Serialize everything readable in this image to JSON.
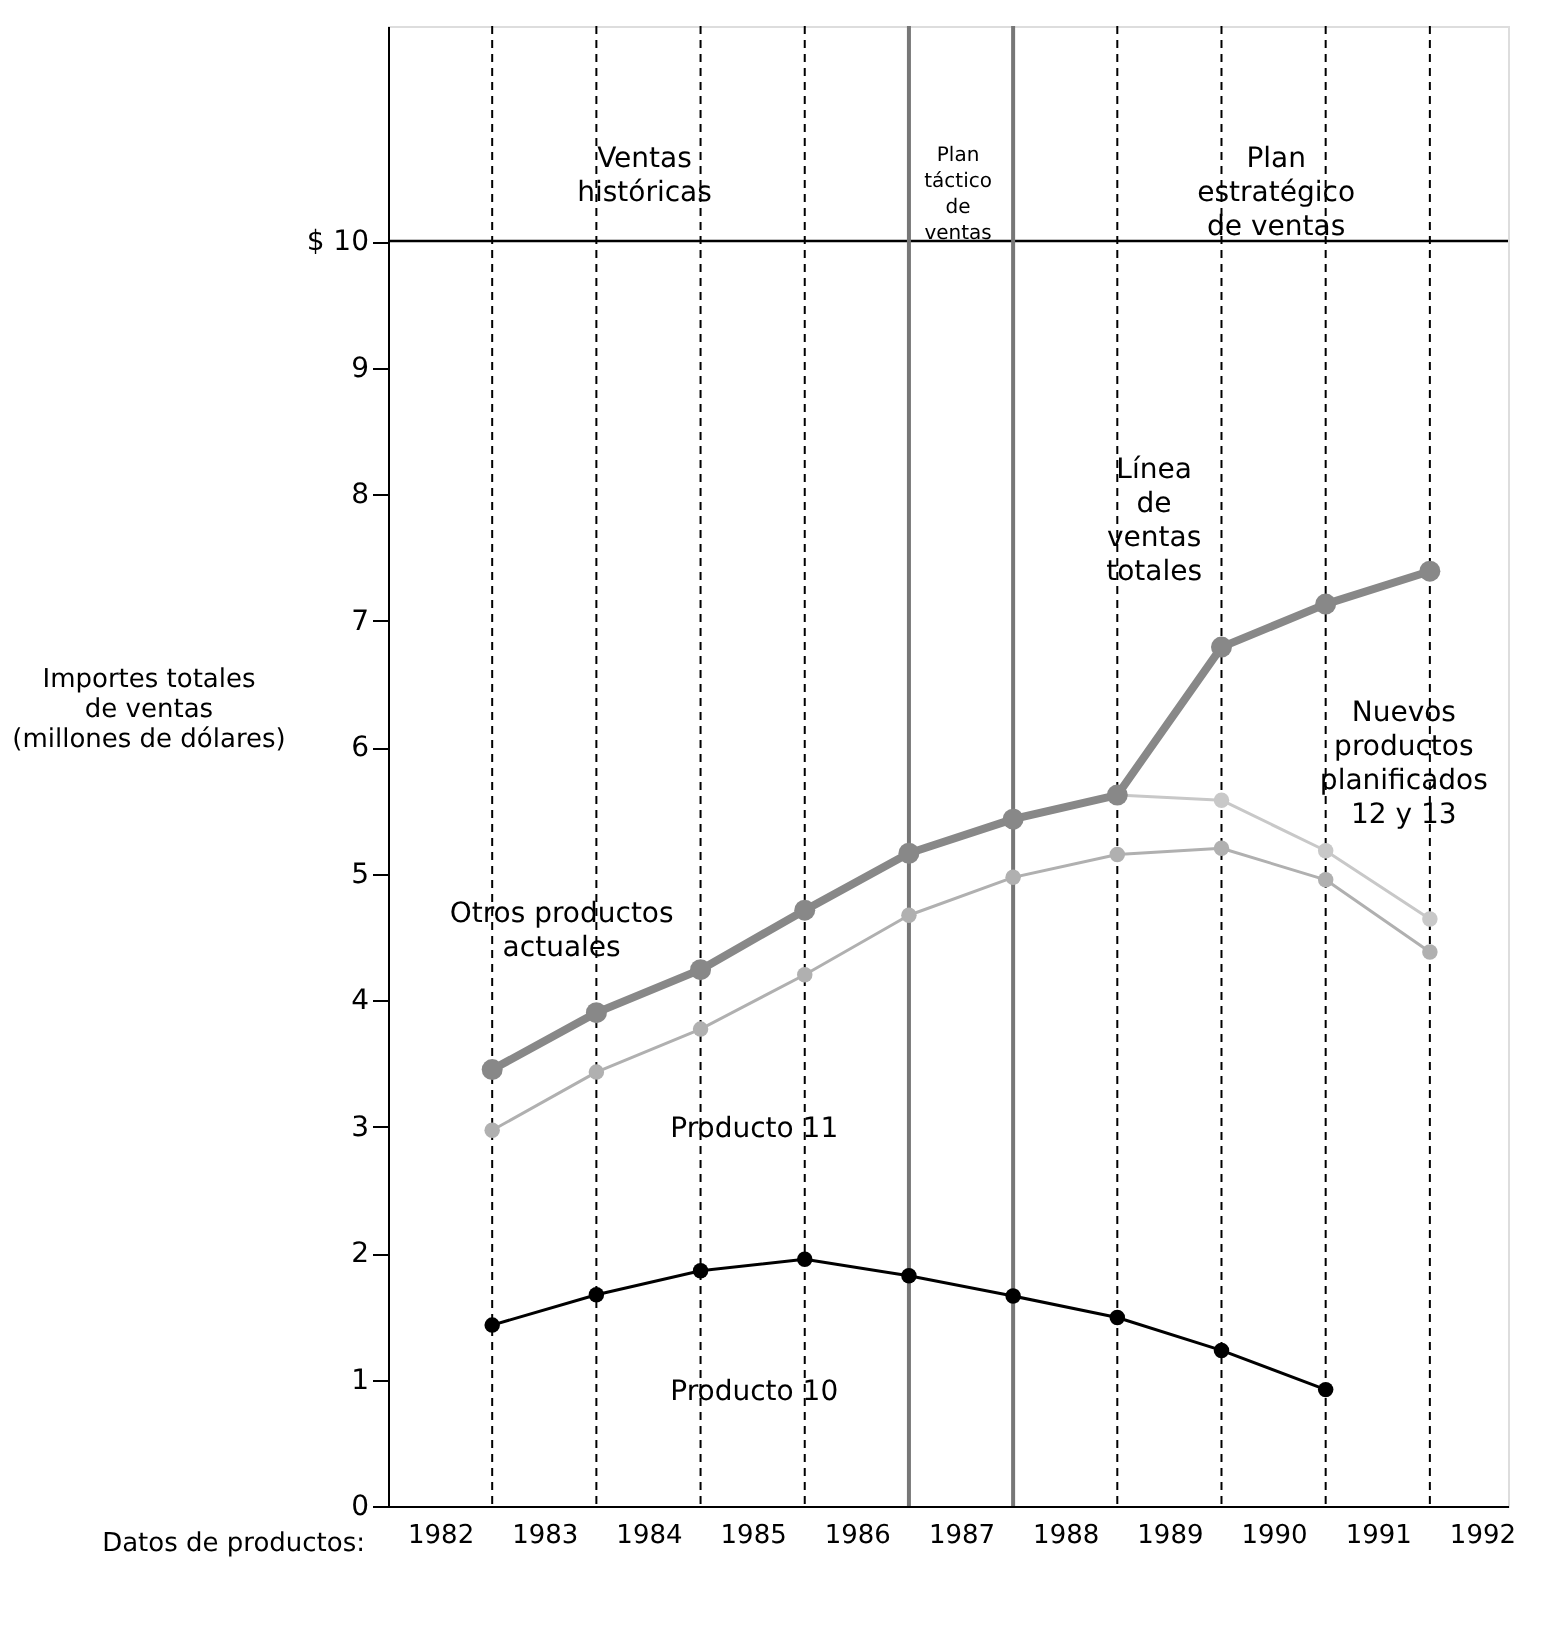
{
  "chart_data": {
    "type": "line",
    "xlabel": "Datos de productos:",
    "ylabel": "Importes totales\nde ventas\n(millones de dólares)",
    "x": [
      1983,
      1984,
      1985,
      1986,
      1987,
      1988,
      1989,
      1990,
      1991,
      1992
    ],
    "series": [
      {
        "color": "#c8c8c8",
        "x": [
          1989,
          1990,
          1991,
          1992
        ],
        "values": [
          5.62,
          5.58,
          5.18,
          4.64
        ]
      },
      {
        "color": "#b0b0b0",
        "values": [
          2.97,
          3.43,
          3.77,
          4.2,
          4.67,
          4.97,
          5.15,
          5.2,
          4.95,
          4.38
        ]
      },
      {
        "color": "#000000",
        "x": [
          1983,
          1984,
          1985,
          1986,
          1987,
          1988,
          1989,
          1990,
          1991
        ],
        "values": [
          1.43,
          1.67,
          1.86,
          1.95,
          1.82,
          1.66,
          1.49,
          1.23,
          0.92
        ]
      },
      {
        "color": "#888888",
        "values": [
          3.45,
          3.9,
          4.24,
          4.71,
          5.16,
          5.43,
          5.62,
          6.79,
          7.13,
          7.39
        ]
      }
    ],
    "xlim": [
      1982,
      1992.75
    ],
    "xticks": [
      {
        "value": 1982.5,
        "label": "1982"
      },
      {
        "value": 1983.5,
        "label": "1983"
      },
      {
        "value": 1984.5,
        "label": "1984"
      },
      {
        "value": 1985.5,
        "label": "1985"
      },
      {
        "value": 1986.5,
        "label": "1986"
      },
      {
        "value": 1987.5,
        "label": "1987"
      },
      {
        "value": 1988.5,
        "label": "1988"
      },
      {
        "value": 1989.5,
        "label": "1989"
      },
      {
        "value": 1990.5,
        "label": "1990"
      },
      {
        "value": 1991.5,
        "label": "1991"
      },
      {
        "value": 1992.5,
        "label": "1992"
      }
    ],
    "ylim": [
      0,
      11.7
    ],
    "yticks": [
      0,
      1,
      2,
      3,
      4,
      5,
      6,
      7,
      8,
      9,
      {
        "value": 10,
        "label": "$ 10"
      }
    ],
    "ref_lines": [
      {
        "axis": "y",
        "value": 10,
        "color": "#000000",
        "line_style": "solid"
      },
      {
        "axis": "x",
        "value": 1987,
        "color": "#777777",
        "line_style": "solid"
      },
      {
        "axis": "x",
        "value": 1988,
        "color": "#777777",
        "line_style": "solid"
      },
      {
        "axis": "x",
        "value": 1983,
        "color": "#000000",
        "line_style": "dashed"
      },
      {
        "axis": "x",
        "value": 1984,
        "color": "#000000",
        "line_style": "dashed"
      },
      {
        "axis": "x",
        "value": 1985,
        "color": "#000000",
        "line_style": "dashed"
      },
      {
        "axis": "x",
        "value": 1986,
        "color": "#000000",
        "line_style": "dashed"
      },
      {
        "axis": "x",
        "value": 1989,
        "color": "#000000",
        "line_style": "dashed"
      },
      {
        "axis": "x",
        "value": 1990,
        "color": "#000000",
        "line_style": "dashed"
      },
      {
        "axis": "x",
        "value": 1991,
        "color": "#000000",
        "line_style": "dashed"
      },
      {
        "axis": "x",
        "value": 1992,
        "color": "#000000",
        "line_style": "dashed"
      }
    ],
    "annotations": [
      "Ventas\nhistóricas",
      "Plan\ntáctico\nde\nventas",
      "Plan\nestratégico\nde ventas",
      "Línea\nde\nventas\ntotales",
      "Nuevos\nproductos\nplanificados\n12 y 13",
      "Otros productos\nactuales",
      "Producto 11",
      "Producto 10"
    ],
    "marker": "circle",
    "line_style": "solid",
    "grid": false
  }
}
